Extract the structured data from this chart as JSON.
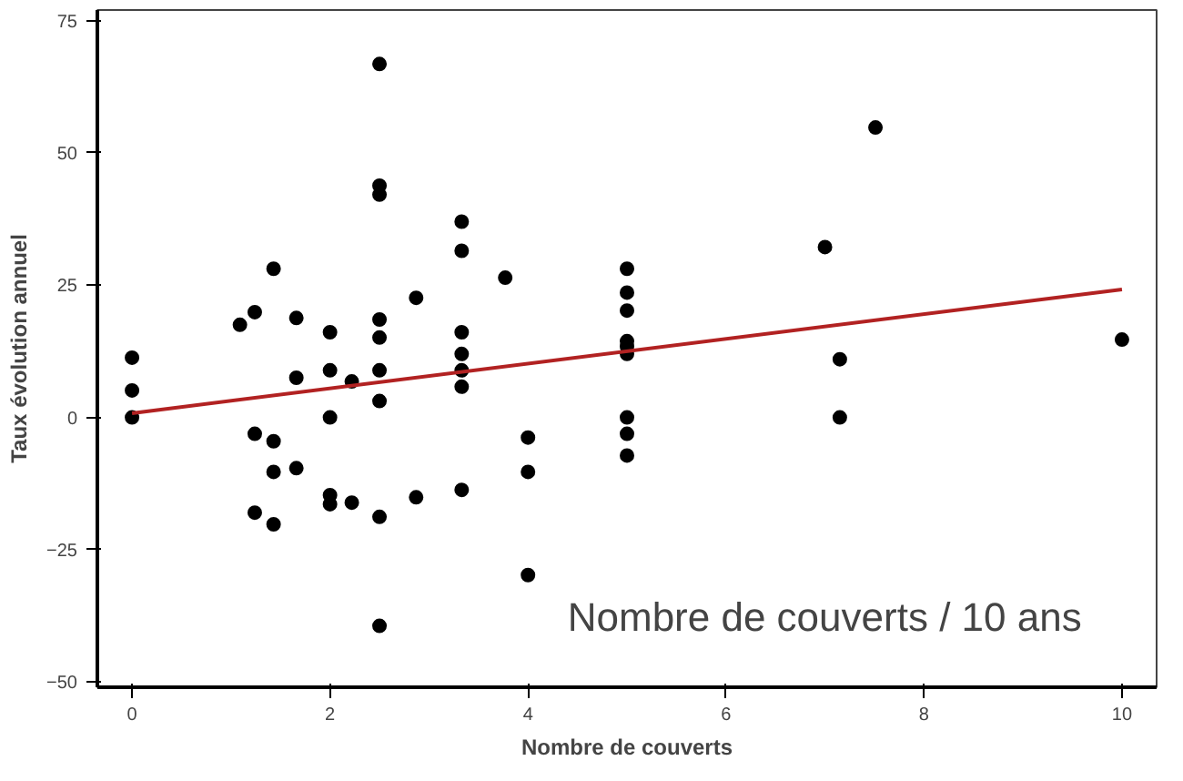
{
  "chart_data": {
    "type": "scatter",
    "xlabel": "Nombre de couverts",
    "ylabel": "Taux évolution annuel",
    "xlim": [
      -0.35,
      10.35
    ],
    "ylim": [
      -51,
      77
    ],
    "xticks": [
      0,
      2,
      4,
      6,
      8,
      10
    ],
    "yticks": [
      -50,
      -25,
      0,
      25,
      50,
      75
    ],
    "grid": false,
    "marker": "circle",
    "annotations": [
      "Nombre de couverts / 10 ans"
    ],
    "series": [
      {
        "color": "#000000",
        "x": [
          0,
          0,
          0,
          1.09,
          1.24,
          1.43,
          1.66,
          1.66,
          1.24,
          1.43,
          1.43,
          1.66,
          1.24,
          1.43,
          2,
          2,
          2,
          2,
          2,
          2.22,
          2.22,
          2.5,
          2.5,
          2.5,
          2.5,
          2.5,
          2.5,
          2.5,
          2.5,
          2.5,
          2.87,
          2.87,
          3.33,
          3.33,
          3.33,
          3.33,
          3.33,
          3.33,
          3.33,
          3.77,
          4,
          4,
          4,
          5,
          5,
          5,
          5,
          5,
          5,
          5,
          5,
          5,
          7.0,
          7.15,
          7.15,
          7.51,
          10
        ],
        "values": [
          11.3,
          5.1,
          0,
          17.5,
          19.9,
          28.1,
          18.8,
          7.5,
          -3.1,
          -4.5,
          -10.3,
          -9.6,
          -18,
          -20.2,
          16.1,
          8.9,
          0,
          -14.7,
          -16.4,
          -16.1,
          6.8,
          66.8,
          43.8,
          42.1,
          18.5,
          15.1,
          8.9,
          3.1,
          -18.8,
          -39.4,
          22.6,
          -15.1,
          37,
          31.5,
          16.1,
          12,
          8.9,
          5.8,
          -13.7,
          26.4,
          -3.8,
          -10.3,
          -29.8,
          28.1,
          23.6,
          20.2,
          14.4,
          13.4,
          12,
          0,
          -3.1,
          -7.2,
          32.2,
          11,
          0,
          54.8,
          14.7
        ]
      },
      {
        "type": "line",
        "marker": "none",
        "color": "#b22222",
        "x": [
          0,
          10
        ],
        "values": [
          0.8,
          24.2
        ]
      }
    ]
  }
}
